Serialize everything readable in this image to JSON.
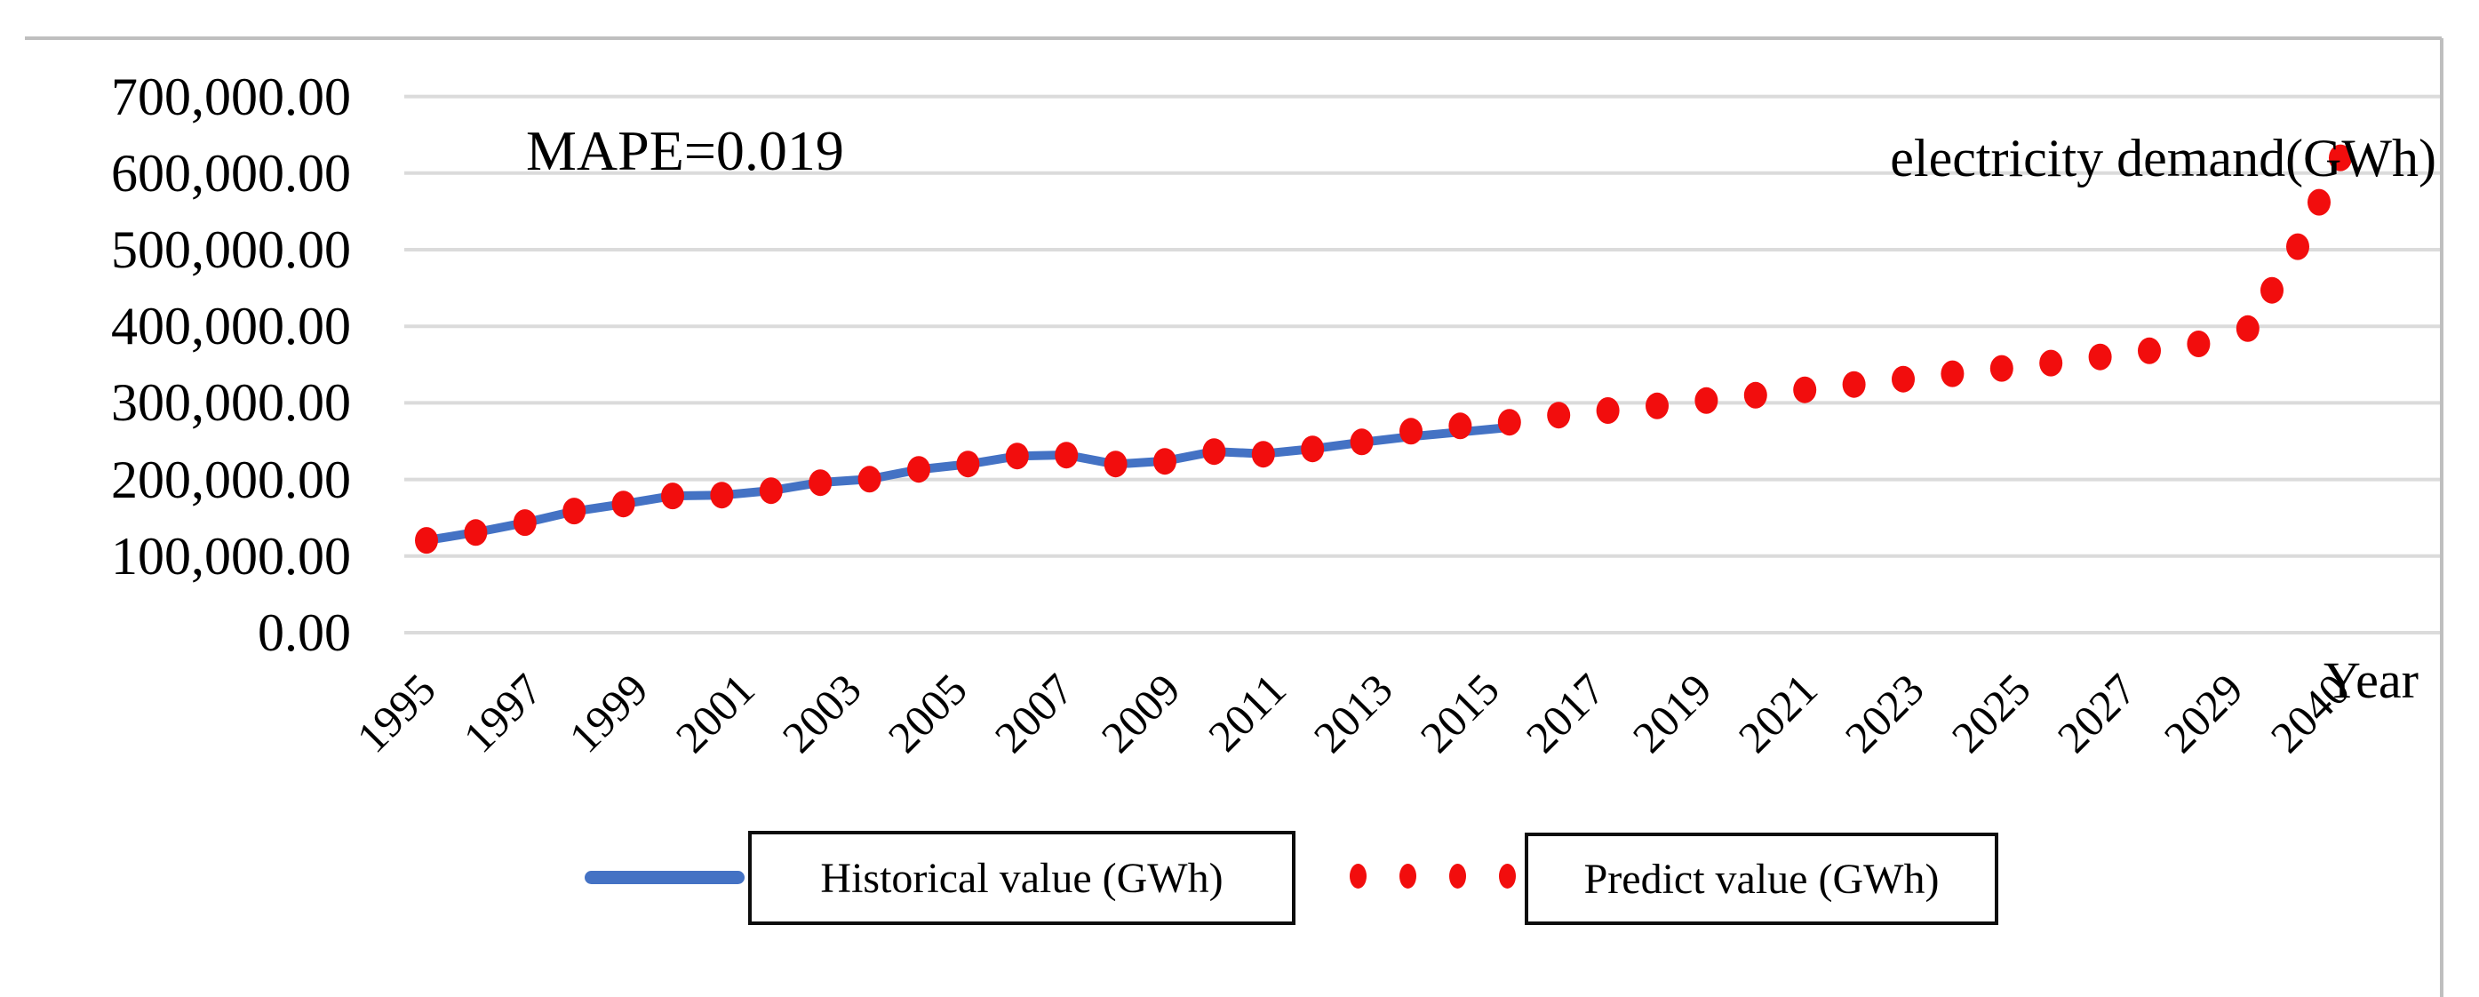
{
  "annotations": {
    "mape": "MAPE=0.019",
    "axis_title_right": "electricity demand(GWh)",
    "x_axis_title": "Year"
  },
  "colors": {
    "historical": "#4472C4",
    "predict": "#F20D0D",
    "gridline": "#DBDBDB",
    "frame": "#BFBFBF",
    "text": "#000000"
  },
  "y_axis": {
    "tick_labels": [
      "700,000.00",
      "600,000.00",
      "500,000.00",
      "400,000.00",
      "300,000.00",
      "200,000.00",
      "100,000.00",
      "0.00"
    ],
    "tick_values": [
      700000,
      600000,
      500000,
      400000,
      300000,
      200000,
      100000,
      0
    ]
  },
  "x_axis": {
    "tick_labels": [
      "1995",
      "1997",
      "1999",
      "2001",
      "2003",
      "2005",
      "2007",
      "2009",
      "2011",
      "2013",
      "2015",
      "2017",
      "2019",
      "2021",
      "2023",
      "2025",
      "2027",
      "2029",
      "2040"
    ]
  },
  "legend": {
    "items": [
      {
        "label": "Historical value (GWh)",
        "marker": "line",
        "color": "#4472C4"
      },
      {
        "label": "Predict value (GWh)",
        "marker": "dots",
        "color": "#F20D0D"
      }
    ]
  },
  "chart_data": {
    "type": "line",
    "title": "",
    "ylabel": "electricity demand(GWh)",
    "xlabel": "Year",
    "annotation": "MAPE=0.019",
    "ylim": [
      0,
      700000
    ],
    "grid": "horizontal",
    "legend_position": "bottom",
    "x_tick_labels": [
      "1995",
      "1997",
      "1999",
      "2001",
      "2003",
      "2005",
      "2007",
      "2009",
      "2011",
      "2013",
      "2015",
      "2017",
      "2019",
      "2021",
      "2023",
      "2025",
      "2027",
      "2029",
      "2040"
    ],
    "series": [
      {
        "name": "Historical value (GWh)",
        "style": "solid-line",
        "color": "#4472C4",
        "years": [
          1995,
          1996,
          1997,
          1998,
          1999,
          2000,
          2001,
          2002,
          2003,
          2004,
          2005,
          2006,
          2007,
          2008,
          2009,
          2010,
          2011,
          2012,
          2013,
          2014,
          2015,
          2016,
          2017
        ],
        "values": [
          120500,
          131000,
          143500,
          158500,
          168000,
          178500,
          179500,
          185500,
          196000,
          200500,
          213000,
          220000,
          230500,
          232000,
          220000,
          224000,
          236500,
          233500,
          240000,
          248500,
          256000,
          262000,
          268000
        ]
      },
      {
        "name": "Predict value (GWh)",
        "style": "dots",
        "color": "#F20D0D",
        "years": [
          1995,
          1996,
          1997,
          1998,
          1999,
          2000,
          2001,
          2002,
          2003,
          2004,
          2005,
          2006,
          2007,
          2008,
          2009,
          2010,
          2011,
          2012,
          2013,
          2014,
          2015,
          2016,
          2017,
          2018,
          2019,
          2020,
          2021,
          2022,
          2023,
          2024,
          2025,
          2026,
          2027,
          2028,
          2029,
          2030,
          2031,
          2032,
          2034,
          2036,
          2038,
          2040
        ],
        "values": [
          120500,
          130800,
          143700,
          158800,
          168000,
          178500,
          179600,
          185400,
          195800,
          200400,
          213200,
          220200,
          230600,
          231800,
          220200,
          223700,
          236400,
          233000,
          239900,
          249100,
          263000,
          270000,
          274700,
          284000,
          290000,
          296000,
          303000,
          310000,
          317000,
          324000,
          331000,
          338000,
          345000,
          352000,
          360000,
          368000,
          377000,
          397000,
          447000,
          504000,
          562000,
          620000
        ]
      }
    ]
  }
}
